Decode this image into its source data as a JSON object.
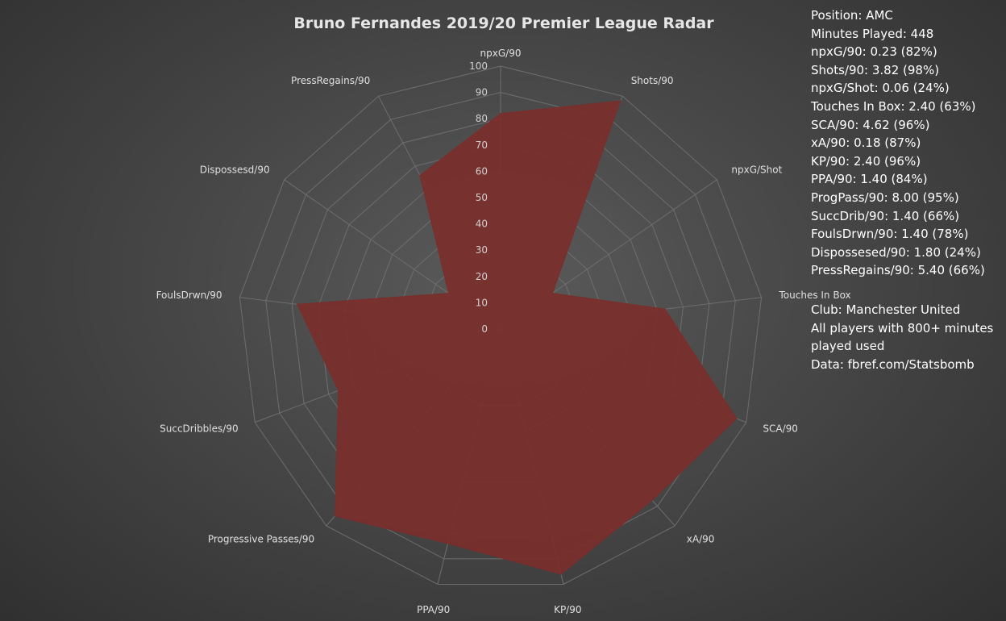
{
  "chart_data": {
    "type": "radar",
    "title": "Bruno Fernandes 2019/20 Premier League Radar",
    "axes": [
      "npxG/90",
      "Shots/90",
      "npxG/Shot",
      "Touches In Box",
      "SCA/90",
      "xA/90",
      "KP/90",
      "PPA/90",
      "Progressive Passes/90",
      "SuccDribbles/90",
      "FoulsDrwn/90",
      "Dispossesd/90",
      "PressRegains/90"
    ],
    "series": [
      {
        "values": [
          82,
          98,
          24,
          63,
          96,
          87,
          96,
          84,
          95,
          66,
          78,
          24,
          66
        ]
      }
    ],
    "rlim": [
      0,
      100
    ],
    "ticks": [
      "0",
      "10",
      "20",
      "30",
      "40",
      "50",
      "60",
      "70",
      "80",
      "90",
      "100"
    ],
    "fill_color": "#7a2e2c",
    "grid": true
  },
  "info": {
    "stats_lines": [
      "Position: AMC",
      "Minutes Played: 448",
      "npxG/90: 0.23 (82%)",
      "Shots/90: 3.82 (98%)",
      "npxG/Shot: 0.06 (24%)",
      "Touches In Box: 2.40 (63%)",
      "SCA/90: 4.62 (96%)",
      "xA/90: 0.18 (87%)",
      "KP/90: 2.40 (96%)",
      "PPA/90: 1.40 (84%)",
      "ProgPass/90: 8.00 (95%)",
      "SuccDrib/90: 1.40 (66%)",
      "FoulsDrwn/90: 1.40 (78%)",
      "Dispossesed/90: 1.80 (24%)",
      "PressRegains/90: 5.40 (66%)"
    ],
    "club": "Club: Manchester United",
    "note": "All players with 800+ minutes played used",
    "source": "Data: fbref.com/Statsbomb"
  }
}
